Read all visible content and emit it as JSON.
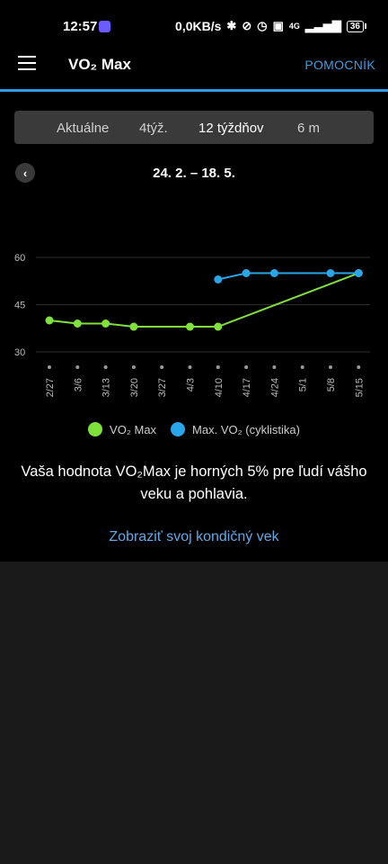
{
  "status_bar": {
    "time": "12:57",
    "network_speed": "0,0KB/s",
    "network_type": "4G",
    "battery": "36",
    "icons": [
      "messenger-icon",
      "bluetooth-icon",
      "vibrate-off-icon",
      "alarm-icon",
      "volte-icon",
      "signal-icon",
      "battery-icon"
    ]
  },
  "header": {
    "title": "VO₂ Max",
    "help_label": "POMOCNÍK"
  },
  "tabs": [
    {
      "label": "Aktuálne",
      "active": false
    },
    {
      "label": "4týž.",
      "active": false
    },
    {
      "label": "12 týždňov",
      "active": true
    },
    {
      "label": "6 m",
      "active": false
    }
  ],
  "range": {
    "label": "24. 2. – 18. 5."
  },
  "legend": {
    "vo2_label": "VO₂ Max",
    "cycling_label": "Max. VO₂ (cyklistika)"
  },
  "message": "Vaša hodnota VO₂Max je horných 5% pre ľudí vášho veku a pohlavia.",
  "fitness_age_link": "Zobraziť svoj kondičný vek",
  "colors": {
    "accent": "#2f9be0",
    "vo2_series": "#7ee23a",
    "cycling_series": "#2aa6e8",
    "link": "#62a8e8"
  },
  "chart_data": {
    "type": "line",
    "categories": [
      "2/27",
      "3/6",
      "3/13",
      "3/20",
      "3/27",
      "4/3",
      "4/10",
      "4/17",
      "4/24",
      "5/1",
      "5/8",
      "5/15"
    ],
    "y_ticks": [
      30,
      45,
      60
    ],
    "ylim": [
      30,
      60
    ],
    "grid": true,
    "series": [
      {
        "name": "VO₂ Max",
        "values": [
          40,
          39,
          39,
          38,
          null,
          38,
          38,
          null,
          null,
          null,
          null,
          55
        ],
        "markers": [
          true,
          true,
          true,
          true,
          false,
          true,
          true,
          false,
          false,
          false,
          false,
          true
        ]
      },
      {
        "name": "Max. VO₂ (cyklistika)",
        "values": [
          null,
          null,
          null,
          null,
          null,
          null,
          53,
          55,
          55,
          null,
          55,
          55
        ],
        "markers": [
          false,
          false,
          false,
          false,
          false,
          false,
          true,
          true,
          true,
          false,
          true,
          true
        ]
      }
    ]
  }
}
